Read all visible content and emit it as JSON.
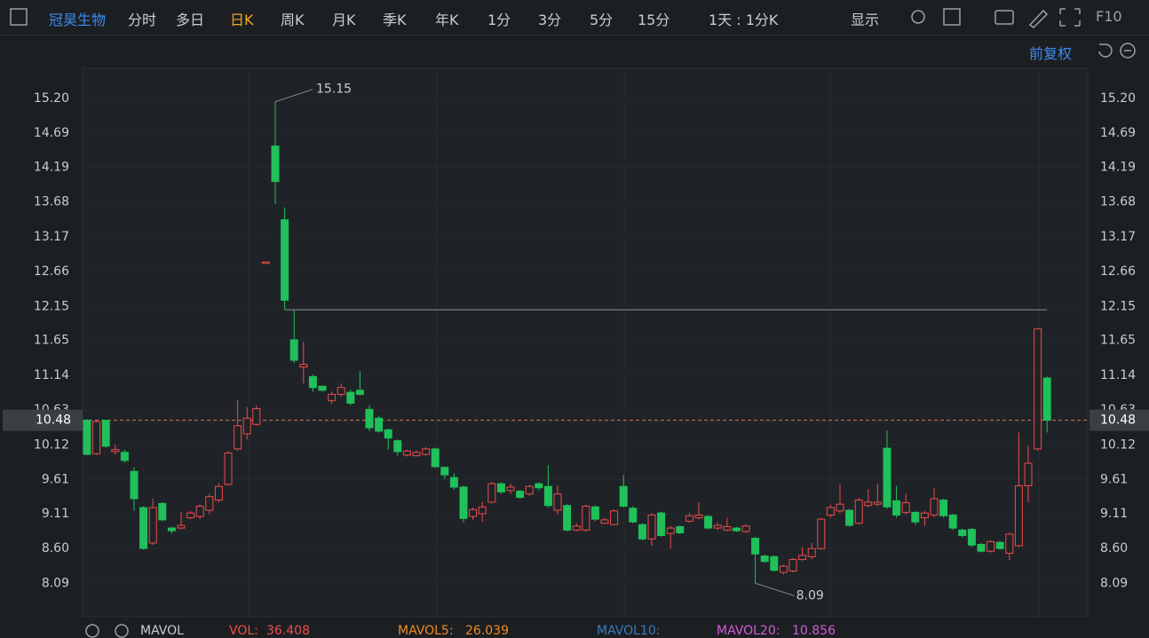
{
  "toolbar": {
    "stock": "冠昊生物",
    "tabs": [
      "分时",
      "多日",
      "日K",
      "周K",
      "月K",
      "季K",
      "年K",
      "1分",
      "3分",
      "5分",
      "15分"
    ],
    "period": "1天 : 1分K",
    "display": "显示",
    "f10": "F10"
  },
  "adjust": "前复权",
  "chart_data": {
    "type": "candlestick",
    "up_color": "#ef4b4b",
    "down_color": "#20c05a",
    "ylim": [
      7.6,
      15.64
    ],
    "yticks": [
      {
        "value": 15.2,
        "label": "15.20"
      },
      14.69,
      14.19,
      13.68,
      13.17,
      12.66,
      12.15,
      11.65,
      11.14,
      10.63,
      10.12,
      9.61,
      9.11,
      {
        "value": 8.6,
        "label": "8.60"
      },
      8.09
    ],
    "grid": true,
    "last_price": 10.48,
    "open": [
      10.48,
      9.99,
      10.48,
      10.02,
      10.01,
      9.73,
      9.2,
      8.68,
      9.26,
      8.9,
      8.9,
      9.05,
      9.07,
      9.16,
      9.31,
      9.54,
      10.06,
      10.28,
      10.42,
      12.8,
      14.5,
      13.42,
      11.66,
      11.26,
      11.12,
      10.98,
      10.77,
      10.86,
      10.89,
      10.92,
      10.64,
      10.51,
      10.34,
      10.18,
      9.97,
      9.96,
      9.98,
      10.06,
      9.79,
      9.64,
      9.5,
      9.07,
      9.11,
      9.28,
      9.55,
      9.45,
      9.44,
      9.4,
      9.55,
      9.51,
      9.16,
      9.23,
      8.87,
      8.87,
      9.21,
      8.97,
      8.95,
      9.51,
      9.19,
      8.95,
      8.74,
      9.12,
      8.82,
      8.92,
      9.0,
      9.05,
      9.07,
      8.9,
      8.87,
      8.9,
      8.85,
      8.75,
      8.49,
      8.48,
      8.25,
      8.27,
      8.44,
      8.48,
      8.6,
      9.09,
      9.15,
      9.16,
      8.97,
      9.23,
      9.25,
      10.07,
      9.3,
      9.13,
      9.13,
      9.05,
      9.09,
      9.31,
      9.09,
      8.87,
      8.88,
      8.66,
      8.56,
      8.69,
      8.53,
      8.64,
      9.52,
      10.06,
      11.1
    ],
    "high": [
      10.5,
      10.48,
      10.48,
      10.12,
      10.05,
      9.79,
      9.22,
      9.33,
      9.28,
      8.92,
      9.13,
      9.15,
      9.25,
      9.4,
      9.56,
      10.03,
      10.78,
      10.67,
      10.7,
      12.8,
      15.15,
      13.6,
      12.09,
      11.63,
      11.15,
      10.98,
      10.9,
      11.02,
      10.93,
      11.2,
      10.7,
      10.55,
      10.36,
      10.2,
      10.05,
      10.04,
      10.09,
      10.08,
      9.8,
      9.7,
      9.52,
      9.2,
      9.28,
      9.58,
      9.57,
      9.55,
      9.46,
      9.54,
      9.57,
      9.82,
      9.52,
      9.25,
      8.97,
      9.24,
      9.23,
      9.05,
      9.17,
      9.68,
      9.22,
      8.97,
      9.12,
      9.14,
      8.93,
      8.94,
      9.12,
      9.28,
      9.09,
      8.98,
      9.05,
      8.92,
      8.96,
      8.77,
      8.51,
      8.5,
      8.36,
      8.46,
      8.62,
      8.68,
      9.05,
      9.24,
      9.55,
      9.18,
      9.34,
      9.47,
      9.55,
      10.33,
      9.52,
      9.4,
      9.15,
      9.15,
      9.48,
      9.33,
      9.11,
      8.89,
      8.9,
      8.68,
      8.72,
      8.71,
      8.83,
      10.3,
      10.1,
      11.82,
      11.12
    ],
    "low": [
      9.97,
      9.97,
      10.08,
      9.98,
      9.86,
      9.15,
      8.58,
      8.65,
      9.0,
      8.82,
      8.88,
      9.03,
      9.03,
      9.1,
      9.28,
      9.52,
      10.03,
      10.2,
      10.4,
      12.8,
      13.65,
      12.1,
      11.32,
      11.02,
      10.9,
      10.9,
      10.72,
      10.82,
      10.7,
      10.84,
      10.32,
      10.3,
      10.05,
      9.96,
      9.95,
      9.95,
      9.96,
      9.78,
      9.62,
      9.46,
      8.98,
      9.02,
      8.99,
      9.26,
      9.4,
      9.4,
      9.33,
      9.37,
      9.45,
      9.2,
      9.1,
      8.85,
      8.85,
      8.85,
      9.0,
      8.96,
      8.94,
      9.2,
      8.97,
      8.72,
      8.64,
      8.77,
      8.6,
      8.81,
      8.98,
      9.03,
      8.88,
      8.87,
      8.85,
      8.84,
      8.83,
      8.09,
      8.39,
      8.26,
      8.22,
      8.25,
      8.42,
      8.44,
      8.58,
      9.05,
      9.12,
      8.92,
      8.95,
      9.2,
      9.22,
      9.18,
      9.05,
      9.1,
      8.95,
      8.93,
      9.06,
      9.05,
      8.87,
      8.76,
      8.62,
      8.54,
      8.54,
      8.58,
      8.43,
      8.62,
      9.28,
      10.04,
      10.3
    ],
    "close": [
      9.98,
      10.46,
      10.1,
      10.05,
      9.89,
      9.33,
      8.6,
      9.2,
      9.02,
      8.86,
      8.94,
      9.12,
      9.22,
      9.36,
      9.51,
      10.0,
      10.4,
      10.51,
      10.65,
      12.8,
      13.98,
      12.24,
      11.36,
      11.3,
      10.96,
      10.92,
      10.86,
      10.96,
      10.73,
      10.86,
      10.37,
      10.32,
      10.22,
      10.02,
      10.03,
      10.01,
      10.06,
      9.8,
      9.68,
      9.5,
      9.04,
      9.17,
      9.21,
      9.55,
      9.43,
      9.5,
      9.35,
      9.51,
      9.49,
      9.23,
      9.4,
      8.87,
      8.93,
      9.22,
      9.03,
      9.02,
      9.15,
      9.22,
      8.99,
      8.74,
      9.09,
      8.79,
      8.9,
      8.83,
      9.08,
      9.09,
      8.9,
      8.94,
      8.92,
      8.86,
      8.93,
      8.52,
      8.41,
      8.28,
      8.34,
      8.44,
      8.5,
      8.6,
      9.03,
      9.2,
      9.25,
      8.94,
      9.31,
      9.28,
      9.28,
      9.21,
      9.09,
      9.27,
      8.99,
      9.12,
      9.33,
      9.08,
      8.9,
      8.79,
      8.65,
      8.56,
      8.7,
      8.6,
      8.81,
      9.52,
      9.85,
      11.82,
      10.48
    ]
  },
  "indicator": {
    "name": "MAVOL",
    "vol_label": "VOL:",
    "vol": 36.408,
    "ma5_label": "MAVOL5:",
    "ma5": 26.039,
    "ma10_label": "MAVOL10:",
    "ma20_label": "MAVOL20:",
    "ma20": 10.856
  }
}
